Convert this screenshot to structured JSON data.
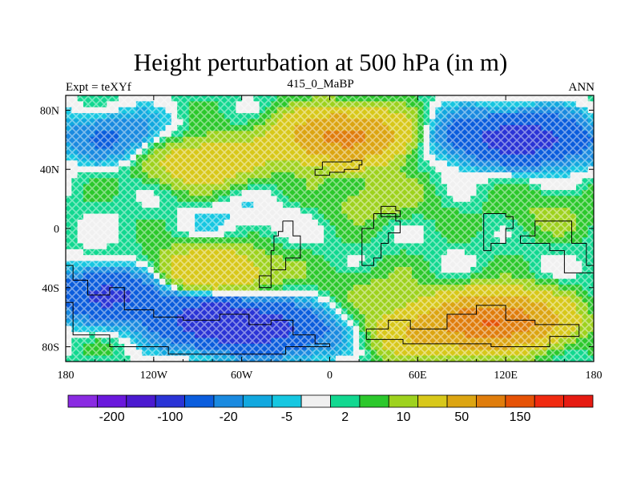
{
  "chart_data": {
    "type": "heatmap",
    "title": "Height perturbation at 500 hPa (in m)",
    "left_string": "Expt = teXYf",
    "center_string": "415_0_MaBP",
    "right_string": "ANN",
    "x_ticks": [
      {
        "value": -180,
        "label": "180"
      },
      {
        "value": -120,
        "label": "120W"
      },
      {
        "value": -60,
        "label": "60W"
      },
      {
        "value": 0,
        "label": "0"
      },
      {
        "value": 60,
        "label": "60E"
      },
      {
        "value": 120,
        "label": "120E"
      },
      {
        "value": 180,
        "label": "180"
      }
    ],
    "y_ticks": [
      {
        "value": 80,
        "label": "80N"
      },
      {
        "value": 40,
        "label": "40N"
      },
      {
        "value": 0,
        "label": "0"
      },
      {
        "value": -40,
        "label": "40S"
      },
      {
        "value": -80,
        "label": "80S"
      }
    ],
    "xlim": [
      -180,
      180
    ],
    "ylim": [
      -90,
      90
    ],
    "colorbar": {
      "colors": [
        "#8a2be2",
        "#6a18dc",
        "#4b1ad0",
        "#2a34d6",
        "#0b5ddd",
        "#1a8ae0",
        "#12a8df",
        "#16c7e1",
        "#f0f0f0",
        "#12d890",
        "#2cc82c",
        "#9ed21e",
        "#d8c81a",
        "#dca512",
        "#e07d0c",
        "#e65206",
        "#f02a10",
        "#e61b12"
      ],
      "tick_labels": [
        "-200",
        "-100",
        "-20",
        "-5",
        "2",
        "10",
        "50",
        "150"
      ],
      "tick_boundaries": [
        1,
        3,
        5,
        7,
        9,
        11,
        13,
        15
      ]
    },
    "field_blobs": [
      {
        "lon": -150,
        "lat": 62,
        "value": -25
      },
      {
        "lon": -85,
        "lat": 45,
        "value": 35
      },
      {
        "lon": 10,
        "lat": 62,
        "value": 110
      },
      {
        "lon": 140,
        "lat": 60,
        "value": -60
      },
      {
        "lon": 100,
        "lat": 62,
        "value": -30
      },
      {
        "lon": -60,
        "lat": 8,
        "value": -6
      },
      {
        "lon": -150,
        "lat": -45,
        "value": -60
      },
      {
        "lon": -75,
        "lat": -63,
        "value": -90
      },
      {
        "lon": -30,
        "lat": -70,
        "value": -40
      },
      {
        "lon": -80,
        "lat": -30,
        "value": 45
      },
      {
        "lon": 30,
        "lat": -40,
        "value": 8
      },
      {
        "lon": 115,
        "lat": -62,
        "value": 140
      },
      {
        "lon": 70,
        "lat": -70,
        "value": 50
      },
      {
        "lon": 30,
        "lat": 20,
        "value": 12
      },
      {
        "lon": 150,
        "lat": 10,
        "value": 8
      }
    ],
    "background_value": 3,
    "continent_outlines": [
      [
        [
          -5,
          45
        ],
        [
          15,
          46
        ],
        [
          22,
          43
        ],
        [
          20,
          40
        ],
        [
          10,
          38
        ],
        [
          0,
          36
        ],
        [
          -10,
          40
        ],
        [
          -5,
          45
        ]
      ],
      [
        [
          -32,
          5
        ],
        [
          -25,
          -5
        ],
        [
          -20,
          -20
        ],
        [
          -30,
          -28
        ],
        [
          -40,
          -40
        ],
        [
          -48,
          -32
        ],
        [
          -40,
          -15
        ],
        [
          -38,
          -5
        ],
        [
          -35,
          -2
        ],
        [
          -32,
          5
        ]
      ],
      [
        [
          -180,
          -25
        ],
        [
          -175,
          -35
        ],
        [
          -165,
          -45
        ],
        [
          -150,
          -40
        ],
        [
          -140,
          -55
        ],
        [
          -120,
          -60
        ],
        [
          -100,
          -62
        ],
        [
          -75,
          -58
        ],
        [
          -55,
          -65
        ],
        [
          -40,
          -62
        ],
        [
          -25,
          -72
        ],
        [
          -10,
          -78
        ],
        [
          0,
          -80
        ],
        [
          -30,
          -85
        ],
        [
          -70,
          -85
        ],
        [
          -110,
          -80
        ],
        [
          -150,
          -72
        ],
        [
          -175,
          -50
        ],
        [
          -180,
          -40
        ],
        [
          -180,
          -25
        ]
      ],
      [
        [
          25,
          -68
        ],
        [
          40,
          -62
        ],
        [
          55,
          -68
        ],
        [
          80,
          -58
        ],
        [
          100,
          -52
        ],
        [
          120,
          -62
        ],
        [
          140,
          -65
        ],
        [
          170,
          -73
        ],
        [
          150,
          -80
        ],
        [
          110,
          -78
        ],
        [
          70,
          -78
        ],
        [
          50,
          -75
        ],
        [
          30,
          -75
        ],
        [
          25,
          -68
        ]
      ],
      [
        [
          30,
          10
        ],
        [
          45,
          5
        ],
        [
          48,
          -3
        ],
        [
          40,
          -10
        ],
        [
          35,
          -20
        ],
        [
          30,
          -25
        ],
        [
          22,
          -15
        ],
        [
          22,
          0
        ],
        [
          30,
          10
        ]
      ],
      [
        [
          105,
          10
        ],
        [
          120,
          8
        ],
        [
          125,
          0
        ],
        [
          120,
          -10
        ],
        [
          110,
          -15
        ],
        [
          105,
          -5
        ],
        [
          105,
          10
        ]
      ],
      [
        [
          130,
          -10
        ],
        [
          150,
          -15
        ],
        [
          160,
          -30
        ],
        [
          180,
          -25
        ],
        [
          175,
          -10
        ],
        [
          165,
          5
        ],
        [
          150,
          5
        ],
        [
          140,
          -5
        ],
        [
          130,
          -10
        ]
      ],
      [
        [
          35,
          15
        ],
        [
          45,
          12
        ],
        [
          48,
          8
        ],
        [
          40,
          8
        ],
        [
          35,
          15
        ]
      ]
    ]
  }
}
